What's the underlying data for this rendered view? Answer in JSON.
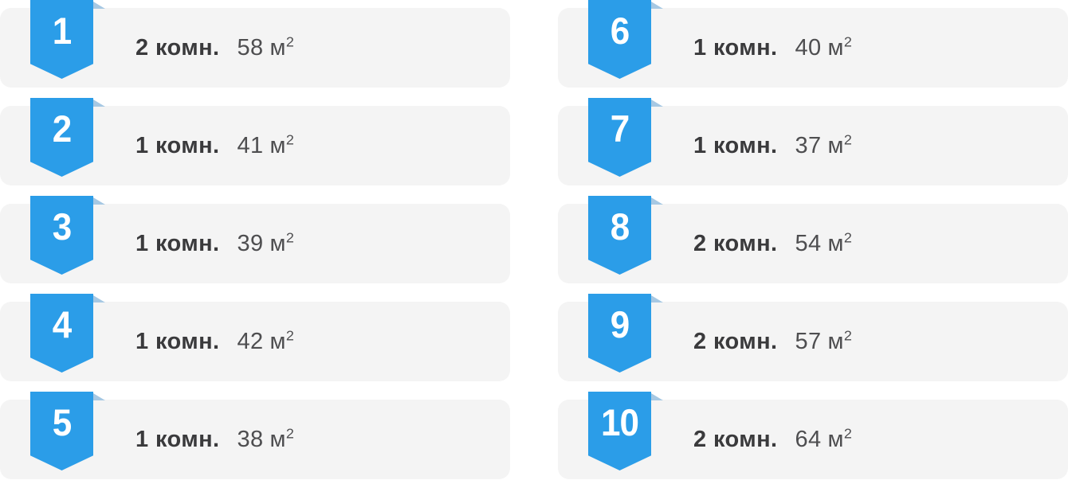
{
  "colors": {
    "badge_blue": "#2b9de8",
    "badge_fold": "#a6c8e3",
    "card_bg": "#f4f4f4",
    "label_color": "#3a3a3c",
    "value_color": "#4e4e50",
    "page_bg": "#ffffff"
  },
  "listings": [
    {
      "rank": "1",
      "rooms": "2 комн.",
      "area": "58",
      "unit": "м",
      "sup": "2"
    },
    {
      "rank": "2",
      "rooms": "1 комн.",
      "area": "41",
      "unit": "м",
      "sup": "2"
    },
    {
      "rank": "3",
      "rooms": "1 комн.",
      "area": "39",
      "unit": "м",
      "sup": "2"
    },
    {
      "rank": "4",
      "rooms": "1 комн.",
      "area": "42",
      "unit": "м",
      "sup": "2"
    },
    {
      "rank": "5",
      "rooms": "1 комн.",
      "area": "38",
      "unit": "м",
      "sup": "2"
    },
    {
      "rank": "6",
      "rooms": "1 комн.",
      "area": "40",
      "unit": "м",
      "sup": "2"
    },
    {
      "rank": "7",
      "rooms": "1 комн.",
      "area": "37",
      "unit": "м",
      "sup": "2"
    },
    {
      "rank": "8",
      "rooms": "2 комн.",
      "area": "54",
      "unit": "м",
      "sup": "2"
    },
    {
      "rank": "9",
      "rooms": "2 комн.",
      "area": "57",
      "unit": "м",
      "sup": "2"
    },
    {
      "rank": "10",
      "rooms": "2 комн.",
      "area": "64",
      "unit": "м",
      "sup": "2"
    }
  ]
}
